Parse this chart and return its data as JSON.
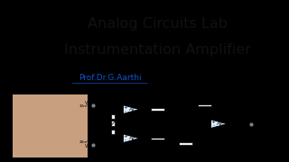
{
  "bg_color": "#000000",
  "content_bg": "#ffffff",
  "title_line1": "Analog Circuits Lab",
  "title_line2": "Instrumentation Amplifier",
  "subtitle": "Prof.Dr.G.Aarthi",
  "title_fontsize": 11.5,
  "subtitle_fontsize": 6.5,
  "title_color": "#111111",
  "subtitle_color": "#1155cc",
  "opamp_color": "#ddeeff",
  "resistor_color": "#eeeeee",
  "line_color": "#000000",
  "photo_color": "#c8a080"
}
